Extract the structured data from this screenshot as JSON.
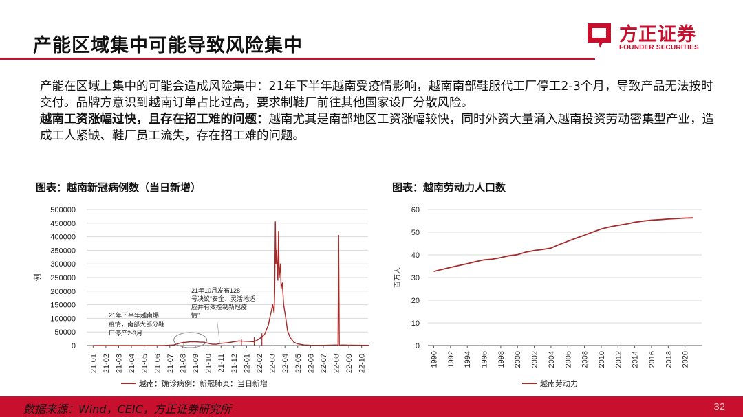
{
  "header": {
    "title": "产能区域集中可能导致风险集中",
    "logo_cn": "方正证券",
    "logo_en": "FOUNDER SECURITIES"
  },
  "body": {
    "paragraphs": [
      {
        "lead": "",
        "text": "产能在区域上集中的可能会造成风险集中：21年下半年越南受疫情影响，越南南部鞋服代工厂停工2-3个月，导致产品无法按时交付。品牌方意识到越南订单占比过高，要求制鞋厂前往其他国家设厂分散风险。"
      },
      {
        "lead": "越南工资涨幅过快，且存在招工难的问题：",
        "text": "越南尤其是南部地区工资涨幅较快，同时外资大量涌入越南投资劳动密集型产业，造成工人紧缺、鞋厂员工流失，存在招工难的问题。"
      }
    ]
  },
  "chart_data": [
    {
      "type": "line",
      "title": "图表：越南新冠病例数（当日新增）",
      "ylabel": "例",
      "ylim": [
        0,
        500000
      ],
      "yticks": [
        "500000",
        "450000",
        "400000",
        "350000",
        "300000",
        "250000",
        "200000",
        "150000",
        "100000",
        "50000",
        "0"
      ],
      "categories": [
        "21-01",
        "21-02",
        "21-03",
        "21-04",
        "21-05",
        "21-06",
        "21-07",
        "21-08",
        "21-09",
        "21-10",
        "21-11",
        "21-12",
        "22-01",
        "22-02",
        "22-03",
        "22-04",
        "22-05",
        "22-06",
        "22-07",
        "22-08",
        "22-09",
        "22-10"
      ],
      "series": [
        {
          "name": "越南：确诊病例：新冠肺炎：当日新增",
          "color": "#a52a2a",
          "points": [
            [
              0,
              0
            ],
            [
              5.5,
              0
            ],
            [
              6.3,
              2000
            ],
            [
              6.6,
              6000
            ],
            [
              6.9,
              10000
            ],
            [
              7.3,
              12000
            ],
            [
              7.6,
              14000
            ],
            [
              8.0,
              14000
            ],
            [
              8.3,
              13000
            ],
            [
              8.7,
              12000
            ],
            [
              9.0,
              8000
            ],
            [
              9.3,
              5000
            ],
            [
              9.6,
              4500
            ],
            [
              10.0,
              8000
            ],
            [
              10.5,
              10000
            ],
            [
              11.0,
              14000
            ],
            [
              11.4,
              17000
            ],
            [
              11.8,
              16000
            ],
            [
              12.2,
              15000
            ],
            [
              12.6,
              14000
            ],
            [
              13.0,
              25000
            ],
            [
              13.4,
              40000
            ],
            [
              13.7,
              75000
            ],
            [
              13.95,
              130000
            ],
            [
              14.05,
              150000
            ],
            [
              14.15,
              120000
            ],
            [
              14.2,
              200000
            ],
            [
              14.25,
              455000
            ],
            [
              14.3,
              300000
            ],
            [
              14.35,
              350000
            ],
            [
              14.45,
              240000
            ],
            [
              14.5,
              420000
            ],
            [
              14.55,
              250000
            ],
            [
              14.65,
              300000
            ],
            [
              14.7,
              210000
            ],
            [
              14.8,
              230000
            ],
            [
              14.9,
              150000
            ],
            [
              15.0,
              120000
            ],
            [
              15.1,
              90000
            ],
            [
              15.2,
              55000
            ],
            [
              15.4,
              30000
            ],
            [
              15.7,
              12000
            ],
            [
              16.0,
              6000
            ],
            [
              16.5,
              2000
            ],
            [
              17.0,
              1000
            ],
            [
              18.0,
              800
            ],
            [
              19.0,
              2000
            ],
            [
              19.15,
              1000
            ],
            [
              19.2,
              405000
            ],
            [
              19.25,
              1000
            ],
            [
              19.5,
              2000
            ],
            [
              20.0,
              1500
            ],
            [
              21.0,
              1000
            ],
            [
              21.6,
              800
            ]
          ],
          "minor_spikes": [
            [
              7.1,
              15000
            ],
            [
              11.6,
              22000
            ],
            [
              12.6,
              30000
            ],
            [
              13.2,
              45000
            ]
          ]
        }
      ],
      "annotations": [
        "21年下半年越南爆发疫情，南部大部分鞋厂停产2-3月",
        "21年10月发布128号决议“安全、灵活地适应并有效控制新冠疫情”"
      ]
    },
    {
      "type": "line",
      "title": "图表：越南劳动力人口数",
      "ylabel": "百万人",
      "ylim": [
        0,
        60
      ],
      "yticks": [
        "60",
        "50",
        "40",
        "30",
        "20",
        "10",
        "0"
      ],
      "categories": [
        "1990",
        "1992",
        "1994",
        "1996",
        "1998",
        "2000",
        "2002",
        "2004",
        "2006",
        "2008",
        "2010",
        "2012",
        "2014",
        "2016",
        "2018",
        "2020"
      ],
      "series": [
        {
          "name": "越南劳动力",
          "color": "#a52a2a",
          "x": [
            1990,
            1991,
            1992,
            1993,
            1994,
            1995,
            1996,
            1997,
            1998,
            1999,
            2000,
            2001,
            2002,
            2003,
            2004,
            2005,
            2006,
            2007,
            2008,
            2009,
            2010,
            2011,
            2012,
            2013,
            2014,
            2015,
            2016,
            2017,
            2018,
            2019,
            2020,
            2021
          ],
          "y": [
            32.7,
            33.6,
            34.5,
            35.3,
            36.1,
            37.0,
            37.8,
            38.1,
            38.8,
            39.6,
            40.1,
            41.2,
            41.9,
            42.4,
            43.0,
            44.6,
            46.0,
            47.4,
            48.7,
            50.1,
            51.4,
            52.3,
            53.0,
            53.6,
            54.4,
            54.9,
            55.3,
            55.5,
            55.8,
            56.0,
            56.2,
            56.3
          ]
        }
      ]
    }
  ],
  "footer": {
    "source": "数据来源：Wind，CEIC，方正证券研究所",
    "page_number": "32"
  },
  "colors": {
    "brand_red": "#c8102e",
    "series_line": "#a52a2a"
  }
}
